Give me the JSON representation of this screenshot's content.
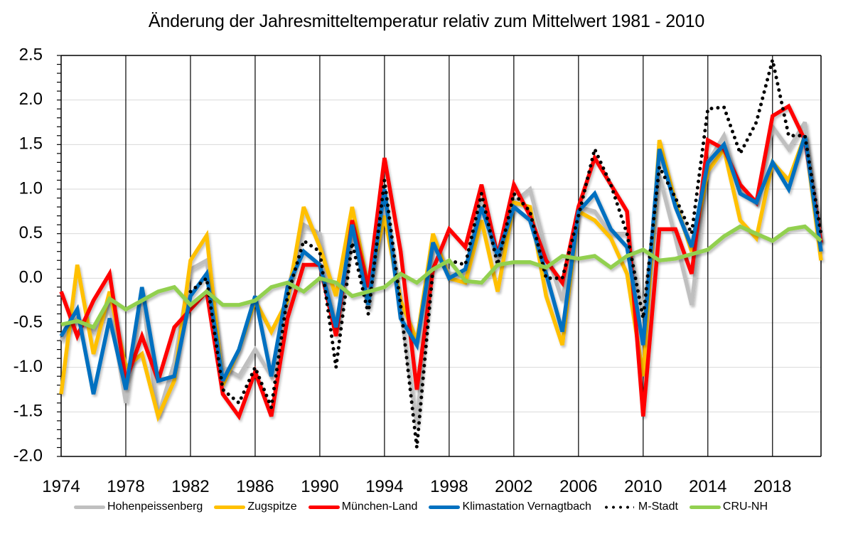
{
  "chart_data": {
    "type": "line",
    "title": "Änderung der Jahresmitteltemperatur relativ zum Mittelwert 1981 - 2010",
    "xlabel": "",
    "ylabel": "",
    "xlim": [
      1974,
      2021
    ],
    "ylim": [
      -2.0,
      2.5
    ],
    "yticks": [
      "2.5",
      "2.0",
      "1.5",
      "1.0",
      "0.5",
      "0.0",
      "-0.5",
      "-1.0",
      "-1.5",
      "-2.0"
    ],
    "ytick_values": [
      2.5,
      2.0,
      1.5,
      1.0,
      0.5,
      0.0,
      -0.5,
      -1.0,
      -1.5,
      -2.0
    ],
    "xticks": [
      "1974",
      "1978",
      "1982",
      "1986",
      "1990",
      "1994",
      "1998",
      "2002",
      "2006",
      "2010",
      "2014",
      "2018"
    ],
    "xtick_values": [
      1974,
      1978,
      1982,
      1986,
      1990,
      1994,
      1998,
      2002,
      2006,
      2010,
      2014,
      2018
    ],
    "grid": "horizontal light gray; vertical black lines every 4 years",
    "legend_position": "bottom",
    "x": [
      1974,
      1975,
      1976,
      1977,
      1978,
      1979,
      1980,
      1981,
      1982,
      1983,
      1984,
      1985,
      1986,
      1987,
      1988,
      1989,
      1990,
      1991,
      1992,
      1993,
      1994,
      1995,
      1996,
      1997,
      1998,
      1999,
      2000,
      2001,
      2002,
      2003,
      2004,
      2005,
      2006,
      2007,
      2008,
      2009,
      2010,
      2011,
      2012,
      2013,
      2014,
      2015,
      2016,
      2017,
      2018,
      2019,
      2020,
      2021
    ],
    "series": [
      {
        "name": "Hohenpeissenberg",
        "color": "#bfbfbf",
        "style": "solid",
        "values": [
          -0.7,
          -0.45,
          -0.6,
          -0.3,
          -1.4,
          -0.15,
          -1.55,
          -0.95,
          0.1,
          0.2,
          -1.0,
          -1.1,
          -0.8,
          -1.1,
          -0.15,
          0.6,
          0.5,
          -0.6,
          0.6,
          -0.35,
          0.8,
          -0.35,
          -1.65,
          0.45,
          0.05,
          0.05,
          0.9,
          0.15,
          0.85,
          1.0,
          0.3,
          -0.25,
          0.8,
          0.75,
          0.5,
          0.5,
          -0.4,
          1.15,
          0.45,
          -0.3,
          1.3,
          1.6,
          1.0,
          0.85,
          1.7,
          1.45,
          1.75,
          0.4
        ]
      },
      {
        "name": "Zugspitze",
        "color": "#ffc000",
        "style": "solid",
        "values": [
          -1.3,
          0.15,
          -0.85,
          -0.15,
          -1.0,
          -0.85,
          -1.55,
          -1.15,
          0.2,
          0.48,
          -1.2,
          -0.8,
          -0.25,
          -0.6,
          -0.25,
          0.8,
          0.35,
          -0.2,
          0.8,
          -0.1,
          0.7,
          -0.25,
          -0.7,
          0.5,
          0.0,
          -0.05,
          0.65,
          -0.15,
          0.85,
          0.8,
          -0.2,
          -0.75,
          0.75,
          0.65,
          0.45,
          0.05,
          -1.1,
          1.55,
          0.85,
          0.3,
          1.2,
          1.45,
          0.65,
          0.45,
          1.3,
          1.1,
          1.6,
          0.2
        ]
      },
      {
        "name": "München-Land",
        "color": "#ff0000",
        "style": "solid",
        "values": [
          -0.15,
          -0.65,
          -0.25,
          0.05,
          -1.15,
          -0.65,
          -1.15,
          -0.55,
          -0.35,
          -0.15,
          -1.3,
          -1.55,
          -1.05,
          -1.55,
          -0.45,
          0.15,
          0.15,
          -0.65,
          0.65,
          -0.1,
          1.35,
          0.3,
          -1.25,
          0.1,
          0.55,
          0.35,
          1.05,
          0.25,
          1.05,
          0.7,
          0.2,
          -0.05,
          0.8,
          1.35,
          1.05,
          0.75,
          -1.55,
          0.55,
          0.55,
          0.05,
          1.55,
          1.45,
          1.05,
          0.85,
          1.82,
          1.93,
          1.55,
          0.4
        ]
      },
      {
        "name": "Klimastation Vernagtbach",
        "color": "#0070c0",
        "style": "solid",
        "values": [
          -0.65,
          -0.35,
          -1.3,
          -0.45,
          -1.25,
          -0.1,
          -1.15,
          -1.1,
          -0.2,
          0.05,
          -1.15,
          -0.8,
          -0.2,
          -1.1,
          -0.1,
          0.3,
          0.15,
          -0.55,
          0.6,
          -0.3,
          1.0,
          -0.45,
          -0.75,
          0.4,
          0.0,
          0.1,
          0.8,
          0.25,
          0.8,
          0.65,
          0.05,
          -0.6,
          0.75,
          0.95,
          0.55,
          0.35,
          -0.75,
          1.45,
          0.8,
          0.35,
          1.3,
          1.5,
          0.95,
          0.85,
          1.3,
          1.0,
          1.6,
          0.3
        ]
      },
      {
        "name": "M-Stadt",
        "color": "#000000",
        "style": "dotted",
        "values": [
          null,
          null,
          null,
          null,
          null,
          null,
          null,
          null,
          -0.15,
          0.0,
          -1.25,
          -1.4,
          -1.0,
          -1.45,
          -0.2,
          0.42,
          0.3,
          -1.0,
          0.4,
          -0.4,
          1.1,
          -0.3,
          -1.9,
          0.1,
          0.2,
          0.15,
          0.95,
          0.15,
          0.95,
          0.75,
          0.0,
          0.0,
          0.7,
          1.45,
          1.05,
          0.5,
          -0.45,
          1.25,
          0.9,
          0.5,
          1.9,
          1.92,
          1.4,
          1.75,
          2.45,
          1.6,
          1.6,
          0.5
        ]
      },
      {
        "name": "CRU-NH",
        "color": "#92d050",
        "style": "solid",
        "values": [
          -0.52,
          -0.48,
          -0.55,
          -0.23,
          -0.35,
          -0.25,
          -0.15,
          -0.1,
          -0.3,
          -0.15,
          -0.3,
          -0.3,
          -0.25,
          -0.1,
          -0.05,
          -0.15,
          0.0,
          -0.05,
          -0.2,
          -0.15,
          -0.1,
          0.05,
          -0.05,
          0.1,
          0.2,
          -0.03,
          -0.05,
          0.15,
          0.18,
          0.18,
          0.12,
          0.25,
          0.22,
          0.25,
          0.12,
          0.25,
          0.32,
          0.2,
          0.22,
          0.27,
          0.32,
          0.47,
          0.58,
          0.5,
          0.42,
          0.55,
          0.58,
          0.42
        ]
      }
    ]
  }
}
